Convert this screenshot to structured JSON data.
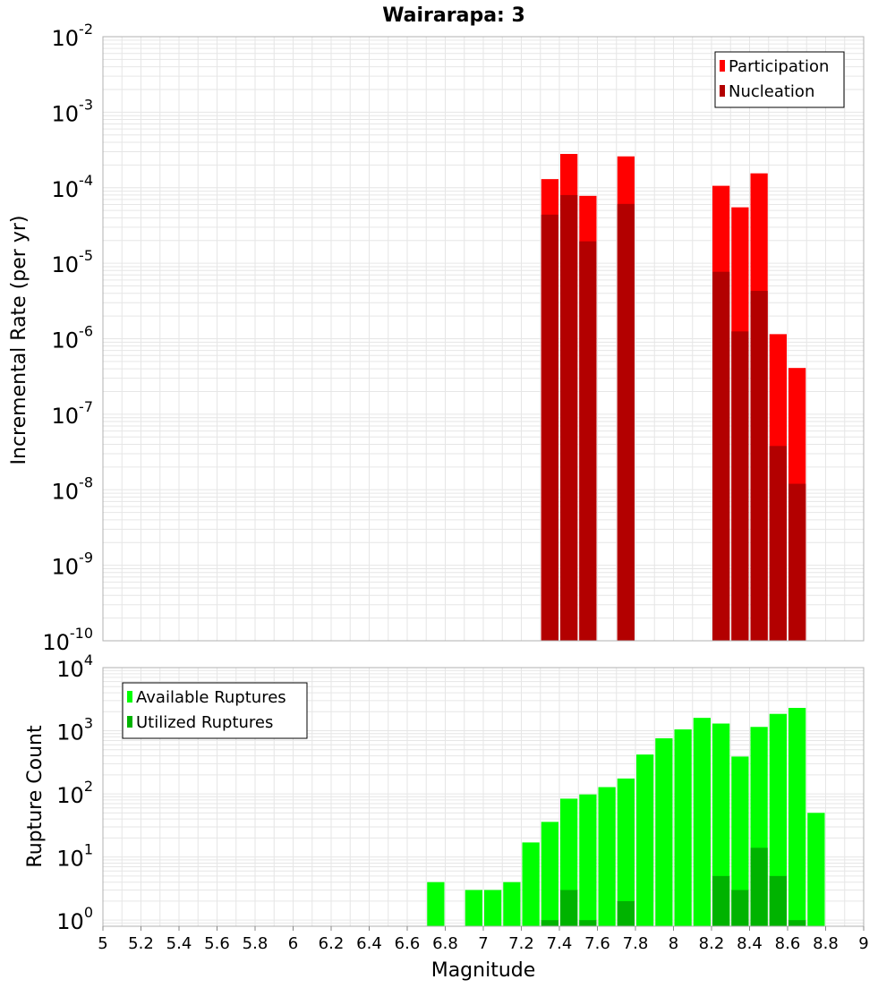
{
  "colors": {
    "participation": "#ff0000",
    "nucleation": "#b30000",
    "available": "#00ff00",
    "utilized": "#00b300",
    "grid": "#e6e6e6",
    "frame": "#b0b0b0"
  },
  "chart_data": {
    "title": "Wairarapa: 3",
    "xlabel": "Magnitude",
    "xlim": [
      5,
      9
    ],
    "xticks": [
      "5",
      "5.2",
      "5.4",
      "5.6",
      "5.8",
      "6",
      "6.2",
      "6.4",
      "6.6",
      "6.8",
      "7",
      "7.2",
      "7.4",
      "7.6",
      "7.8",
      "8",
      "8.2",
      "8.4",
      "8.6",
      "8.8",
      "9"
    ],
    "bin_width": 0.1,
    "panels": [
      {
        "type": "bar",
        "ylabel": "Incremental Rate (per yr)",
        "yscale": "log",
        "ylim": [
          1e-10,
          0.01
        ],
        "ytick_exponents": [
          "-10",
          "-9",
          "-8",
          "-7",
          "-6",
          "-5",
          "-4",
          "-3",
          "-2"
        ],
        "legend_position": "top-right",
        "grid": true,
        "series": [
          {
            "name": "Participation",
            "x": [
              7.35,
              7.45,
              7.55,
              7.75,
              8.25,
              8.35,
              8.45,
              8.55,
              8.65
            ],
            "values": [
              0.00013,
              0.00028,
              7.8e-05,
              0.00026,
              0.000106,
              5.5e-05,
              0.000155,
              1.15e-06,
              4.1e-07
            ]
          },
          {
            "name": "Nucleation",
            "x": [
              7.35,
              7.45,
              7.55,
              7.75,
              8.25,
              8.35,
              8.45,
              8.55,
              8.65
            ],
            "values": [
              4.4e-05,
              8e-05,
              1.95e-05,
              6.1e-05,
              7.7e-06,
              1.25e-06,
              4.3e-06,
              3.8e-08,
              1.2e-08
            ]
          }
        ]
      },
      {
        "type": "bar",
        "ylabel": "Rupture Count",
        "yscale": "log",
        "ylim": [
          0.8,
          10000
        ],
        "ytick_exponents": [
          "0",
          "1",
          "2",
          "3",
          "4"
        ],
        "legend_position": "top-left",
        "grid": true,
        "series": [
          {
            "name": "Available Ruptures",
            "x": [
              6.75,
              6.95,
              7.05,
              7.15,
              7.25,
              7.35,
              7.45,
              7.55,
              7.65,
              7.75,
              7.85,
              7.95,
              8.05,
              8.15,
              8.25,
              8.35,
              8.45,
              8.55,
              8.65,
              8.75
            ],
            "values": [
              4,
              3,
              3,
              4,
              17,
              36,
              84,
              98,
              128,
              175,
              420,
              760,
              1050,
              1600,
              1300,
              390,
              1150,
              1850,
              2300,
              50
            ]
          },
          {
            "name": "Utilized Ruptures",
            "x": [
              7.35,
              7.45,
              7.55,
              7.75,
              8.25,
              8.35,
              8.45,
              8.55,
              8.65
            ],
            "values": [
              1,
              3,
              1,
              2,
              5,
              3,
              14,
              5,
              1
            ]
          }
        ]
      }
    ]
  }
}
